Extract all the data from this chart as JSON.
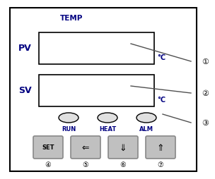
{
  "bg_color": "#ffffff",
  "border_color": "#000000",
  "title": "TEMP",
  "pv_label": "PV",
  "sv_label": "SV",
  "deg_c": "°C",
  "indicators": [
    "RUN",
    "HEAT",
    "ALM"
  ],
  "buttons": [
    "SET",
    "⇐",
    "⇓",
    "⇑"
  ],
  "button_labels": [
    "④",
    "⑤",
    "⑥",
    "⑦"
  ],
  "callout_labels": [
    "①",
    "②",
    "③"
  ],
  "text_color": "#000080",
  "label_color": "#000080",
  "box_line_color": "#000000",
  "indicator_color": "#e0e0e0",
  "button_color": "#c0c0c0",
  "line_color": "#505050",
  "figw": 3.04,
  "figh": 2.55,
  "dpi": 100
}
